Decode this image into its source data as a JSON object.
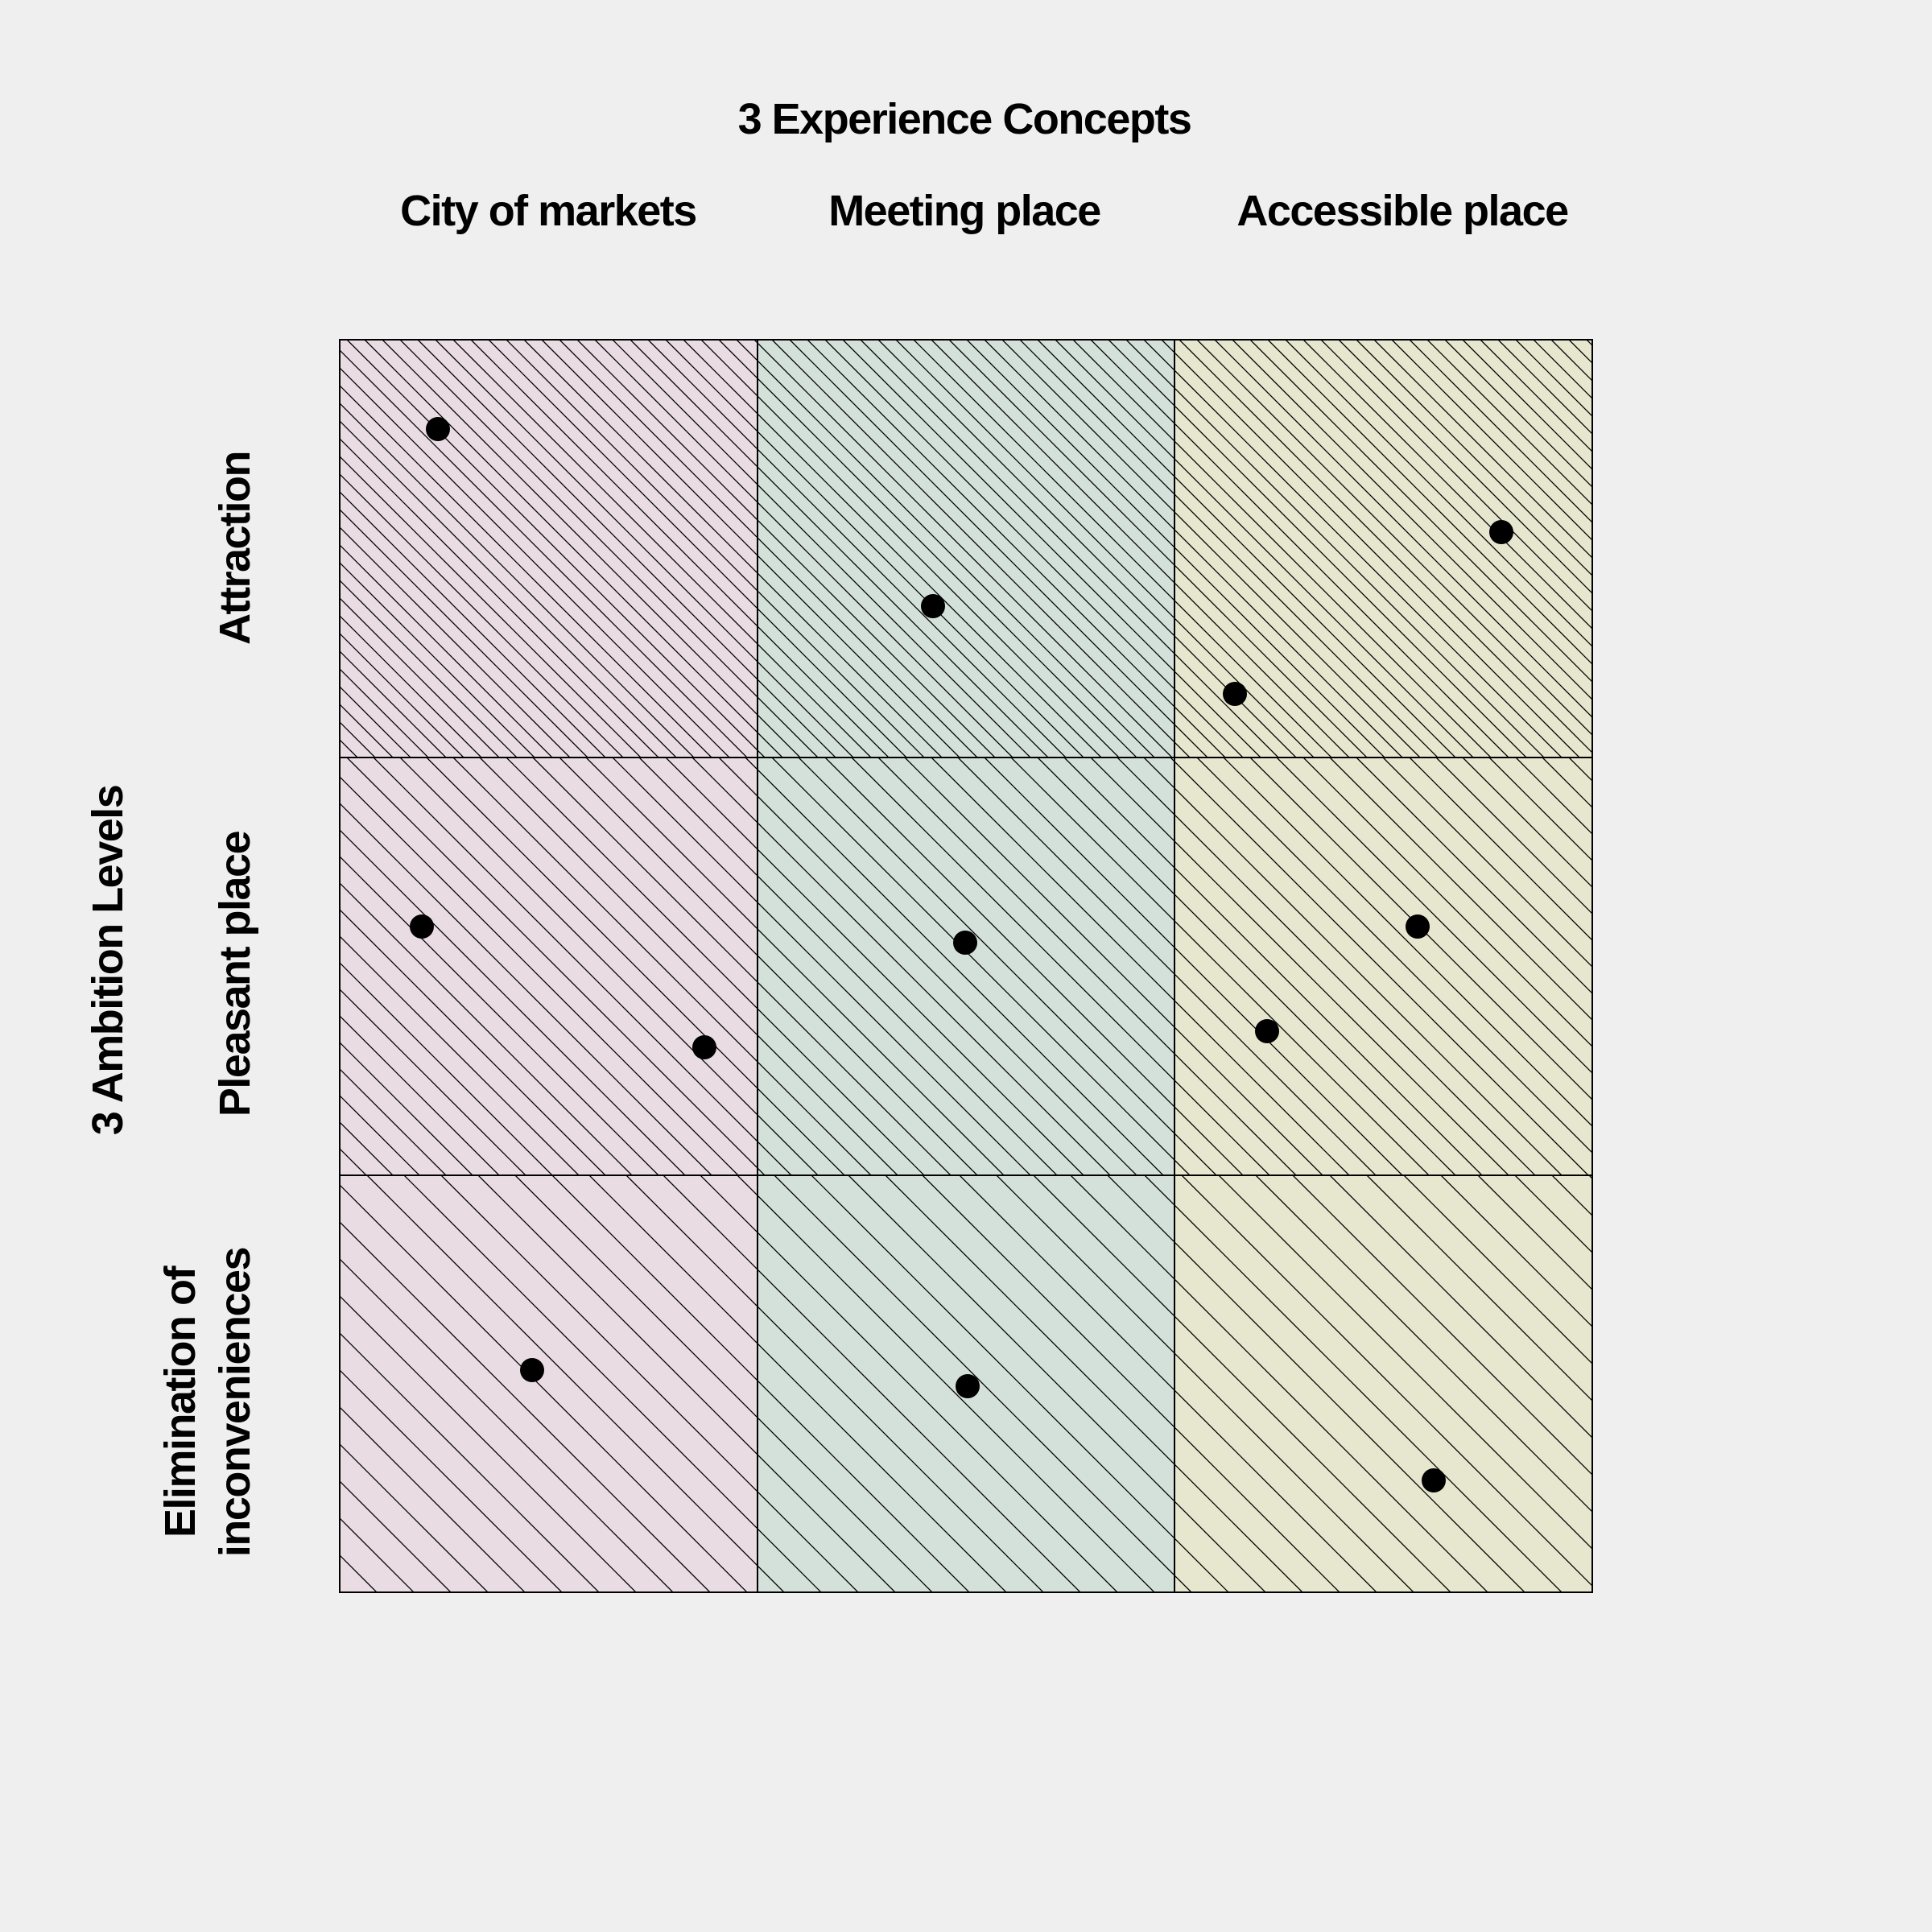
{
  "diagram": {
    "top_title": "3 Experience Concepts",
    "left_title": "3 Ambition Levels",
    "columns": [
      {
        "label": "City of markets",
        "fill": "#e9dce3"
      },
      {
        "label": "Meeting place",
        "fill": "#d4e1da"
      },
      {
        "label": "Accessible place",
        "fill": "#e7e6ce"
      }
    ],
    "rows": [
      {
        "label_lines": [
          "Attraction"
        ],
        "hatch_density": "dense"
      },
      {
        "label_lines": [
          "Pleasant place"
        ],
        "hatch_density": "medium"
      },
      {
        "label_lines": [
          "Elimination of",
          "inconveniences"
        ],
        "hatch_density": "sparse"
      }
    ],
    "line_color": "#000000",
    "dot_color": "#000000"
  }
}
